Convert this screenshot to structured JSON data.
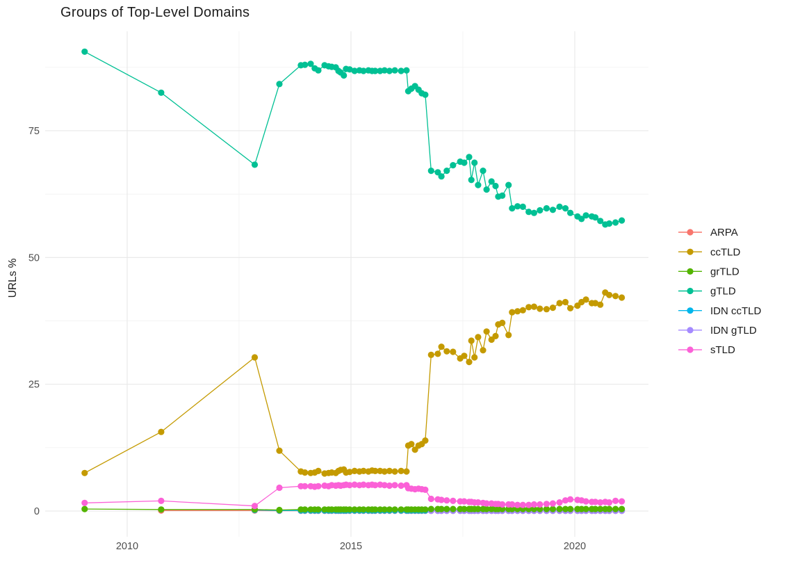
{
  "chart_data": {
    "type": "line",
    "title": "Groups of Top-Level Domains",
    "xlabel": "",
    "ylabel": "URLs %",
    "x_ticks": [
      2010,
      2015,
      2020
    ],
    "x_minor_ticks": [
      2012.5,
      2017.5
    ],
    "y_ticks": [
      0,
      25,
      50,
      75
    ],
    "y_minor_ticks": [
      12.5,
      37.5,
      62.5,
      87.5
    ],
    "x_range": [
      2008.17,
      2021.65
    ],
    "y_range": [
      -5.1,
      94.6
    ],
    "grid": true,
    "legend_position": "right",
    "x": [
      2009.05,
      2010.76,
      2012.85,
      2013.4,
      2013.88,
      2013.97,
      2014.1,
      2014.19,
      2014.27,
      2014.41,
      2014.5,
      2014.57,
      2014.66,
      2014.72,
      2014.77,
      2014.84,
      2014.89,
      2014.97,
      2015.08,
      2015.19,
      2015.28,
      2015.39,
      2015.47,
      2015.54,
      2015.65,
      2015.75,
      2015.86,
      2015.98,
      2016.12,
      2016.24,
      2016.28,
      2016.35,
      2016.43,
      2016.51,
      2016.58,
      2016.66,
      2016.79,
      2016.94,
      2017.02,
      2017.14,
      2017.28,
      2017.44,
      2017.53,
      2017.64,
      2017.69,
      2017.76,
      2017.84,
      2017.95,
      2018.03,
      2018.14,
      2018.23,
      2018.29,
      2018.38,
      2018.52,
      2018.6,
      2018.72,
      2018.84,
      2018.97,
      2019.09,
      2019.22,
      2019.37,
      2019.51,
      2019.66,
      2019.79,
      2019.9,
      2020.06,
      2020.15,
      2020.25,
      2020.38,
      2020.46,
      2020.57,
      2020.68,
      2020.77,
      2020.91,
      2021.05
    ],
    "series": [
      {
        "name": "ARPA",
        "color": "#F8766D",
        "values": [
          null,
          0.1,
          0.1,
          0.05,
          0.05,
          0.05,
          0.05,
          0.05,
          0.05,
          0.05,
          0.05,
          0.05,
          0.05,
          0.05,
          0.05,
          0.05,
          0.05,
          0.05,
          0.05,
          0.05,
          0.05,
          0.05,
          0.05,
          0.05,
          0.05,
          0.05,
          0.05,
          0.05,
          0.05,
          0.05,
          0.05,
          0.05,
          0.05,
          0.05,
          0.05,
          0.05,
          0.05,
          0.05,
          0.05,
          0.05,
          0.05,
          0.05,
          0.05,
          0.05,
          0.05,
          0.05,
          0.05,
          0.05,
          0.05,
          0.05,
          0.05,
          0.05,
          0.05,
          0.05,
          0.05,
          0.05,
          0.05,
          0.05,
          0.05,
          0.05,
          0.05,
          0.05,
          0.05,
          0.05,
          0.05,
          0.05,
          0.05,
          0.05,
          0.05,
          0.05,
          0.05,
          0.05,
          0.05,
          0.05,
          0.05
        ]
      },
      {
        "name": "ccTLD",
        "color": "#C49A00",
        "values": [
          7.5,
          15.6,
          30.3,
          11.9,
          7.8,
          7.6,
          7.5,
          7.6,
          7.9,
          7.4,
          7.5,
          7.6,
          7.5,
          7.9,
          8.1,
          8.2,
          7.6,
          7.7,
          7.9,
          7.8,
          7.9,
          7.8,
          8.0,
          7.9,
          7.9,
          7.8,
          7.9,
          7.8,
          7.9,
          7.8,
          12.9,
          13.2,
          12.1,
          12.9,
          13.2,
          13.9,
          30.8,
          31.0,
          32.4,
          31.5,
          31.4,
          30.1,
          30.6,
          29.4,
          33.6,
          30.3,
          34.3,
          31.7,
          35.4,
          33.8,
          34.5,
          36.8,
          37.1,
          34.7,
          39.2,
          39.4,
          39.6,
          40.2,
          40.3,
          39.9,
          39.8,
          40.1,
          41.0,
          41.2,
          40.0,
          40.5,
          41.2,
          41.7,
          41.0,
          41.0,
          40.7,
          43.1,
          42.6,
          42.4,
          42.1
        ]
      },
      {
        "name": "grTLD",
        "color": "#53B400",
        "values": [
          0.4,
          0.3,
          0.3,
          0.2,
          0.3,
          0.3,
          0.3,
          0.3,
          0.3,
          0.3,
          0.3,
          0.3,
          0.3,
          0.3,
          0.3,
          0.3,
          0.3,
          0.3,
          0.3,
          0.3,
          0.3,
          0.3,
          0.3,
          0.3,
          0.3,
          0.3,
          0.3,
          0.3,
          0.3,
          0.3,
          0.3,
          0.3,
          0.3,
          0.3,
          0.3,
          0.3,
          0.4,
          0.4,
          0.4,
          0.4,
          0.4,
          0.4,
          0.4,
          0.4,
          0.4,
          0.4,
          0.4,
          0.4,
          0.4,
          0.4,
          0.4,
          0.4,
          0.4,
          0.4,
          0.4,
          0.4,
          0.4,
          0.4,
          0.4,
          0.4,
          0.4,
          0.4,
          0.4,
          0.4,
          0.4,
          0.4,
          0.4,
          0.4,
          0.4,
          0.4,
          0.4,
          0.4,
          0.4,
          0.4,
          0.4
        ]
      },
      {
        "name": "gTLD",
        "color": "#00C094",
        "values": [
          90.6,
          82.5,
          68.3,
          84.2,
          87.9,
          88.0,
          88.2,
          87.3,
          86.9,
          87.9,
          87.7,
          87.6,
          87.5,
          86.8,
          86.5,
          85.9,
          87.2,
          87.1,
          86.8,
          86.9,
          86.8,
          86.9,
          86.8,
          86.8,
          86.8,
          86.9,
          86.8,
          86.9,
          86.8,
          86.9,
          82.8,
          83.3,
          83.8,
          83.1,
          82.4,
          82.1,
          67.1,
          66.8,
          66.0,
          67.1,
          68.2,
          68.9,
          68.7,
          69.8,
          65.3,
          68.7,
          64.3,
          67.1,
          63.4,
          65.0,
          64.1,
          62.0,
          62.2,
          64.3,
          59.7,
          60.1,
          60.0,
          59.0,
          58.8,
          59.3,
          59.7,
          59.4,
          60.0,
          59.7,
          58.8,
          58.1,
          57.6,
          58.3,
          58.1,
          57.9,
          57.2,
          56.5,
          56.7,
          56.9,
          57.3
        ]
      },
      {
        "name": "IDN ccTLD",
        "color": "#00B6EB",
        "values": [
          null,
          null,
          0.2,
          0.1,
          0.1,
          0.1,
          0.1,
          0.1,
          0.1,
          0.1,
          0.1,
          0.1,
          0.1,
          0.1,
          0.1,
          0.1,
          0.1,
          0.1,
          0.1,
          0.1,
          0.1,
          0.1,
          0.1,
          0.1,
          0.1,
          0.1,
          0.1,
          0.1,
          0.1,
          0.1,
          0.1,
          0.1,
          0.1,
          0.1,
          0.1,
          0.1,
          0.1,
          0.1,
          0.1,
          0.1,
          0.1,
          0.1,
          0.1,
          0.1,
          0.1,
          0.1,
          0.1,
          0.1,
          0.1,
          0.1,
          0.1,
          0.1,
          0.1,
          0.1,
          0.1,
          0.1,
          0.1,
          0.1,
          0.1,
          0.1,
          0.1,
          0.1,
          0.1,
          0.1,
          0.1,
          0.1,
          0.1,
          0.1,
          0.1,
          0.1,
          0.1,
          0.1,
          0.1,
          0.1,
          0.1
        ]
      },
      {
        "name": "IDN gTLD",
        "color": "#A58AFF",
        "values": [
          null,
          null,
          null,
          null,
          null,
          null,
          null,
          null,
          null,
          null,
          null,
          null,
          null,
          null,
          null,
          null,
          null,
          null,
          null,
          null,
          null,
          null,
          null,
          null,
          null,
          null,
          null,
          null,
          null,
          null,
          null,
          null,
          null,
          null,
          null,
          null,
          0.05,
          0.05,
          0.05,
          0.05,
          0.05,
          0.05,
          0.05,
          0.05,
          0.05,
          0.05,
          0.05,
          0.05,
          0.05,
          0.05,
          0.05,
          0.05,
          0.05,
          0.05,
          0.05,
          0.05,
          0.05,
          0.05,
          0.05,
          0.05,
          0.05,
          0.05,
          0.05,
          0.05,
          0.05,
          0.05,
          0.05,
          0.05,
          0.05,
          0.05,
          0.05,
          0.05,
          0.05,
          0.05,
          0.05
        ]
      },
      {
        "name": "sTLD",
        "color": "#FB61D7",
        "values": [
          1.6,
          2.0,
          1.0,
          4.6,
          4.9,
          4.9,
          4.9,
          4.8,
          4.9,
          5.0,
          4.9,
          5.1,
          5.0,
          5.1,
          5.0,
          5.1,
          5.2,
          5.1,
          5.2,
          5.1,
          5.2,
          5.1,
          5.2,
          5.1,
          5.2,
          5.1,
          5.0,
          5.1,
          5.0,
          5.1,
          4.5,
          4.4,
          4.3,
          4.4,
          4.3,
          4.2,
          2.4,
          2.3,
          2.2,
          2.1,
          2.0,
          1.9,
          1.9,
          1.8,
          1.8,
          1.7,
          1.7,
          1.6,
          1.5,
          1.5,
          1.4,
          1.4,
          1.3,
          1.3,
          1.3,
          1.2,
          1.2,
          1.2,
          1.3,
          1.3,
          1.4,
          1.5,
          1.7,
          2.1,
          2.3,
          2.2,
          2.1,
          1.9,
          1.8,
          1.8,
          1.7,
          1.8,
          1.7,
          2.0,
          1.9
        ]
      }
    ],
    "draw_order": [
      "ARPA",
      "IDN ccTLD",
      "IDN gTLD",
      "grTLD",
      "sTLD",
      "ccTLD",
      "gTLD"
    ]
  }
}
